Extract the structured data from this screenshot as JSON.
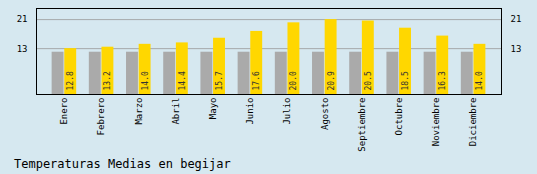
{
  "chart_data": {
    "type": "bar",
    "title": "Temperaturas Medias en begijar",
    "categories": [
      "Enero",
      "Febrero",
      "Marzo",
      "Abril",
      "Mayo",
      "Junio",
      "Julio",
      "Agosto",
      "Septiembre",
      "Octubre",
      "Noviembre",
      "Diciembre"
    ],
    "series": [
      {
        "color": "#AAAAAA",
        "values": [
          11.8,
          11.8,
          11.8,
          11.8,
          11.8,
          11.8,
          11.8,
          11.8,
          11.8,
          11.8,
          11.8,
          11.8
        ]
      },
      {
        "color": "#FFD700",
        "values": [
          12.8,
          13.2,
          14.0,
          14.4,
          15.7,
          17.6,
          20.0,
          20.9,
          20.5,
          18.5,
          16.3,
          14.0
        ],
        "data_labels": true,
        "value_labels": [
          "12.8",
          "13.2",
          "14.0",
          "14.4",
          "15.7",
          "17.6",
          "20.0",
          "20.9",
          "20.5",
          "18.5",
          "16.3",
          "14.0"
        ]
      }
    ],
    "ylim": [
      0,
      24
    ],
    "yticks": [
      12.8,
      20.9
    ],
    "grid": true
  }
}
